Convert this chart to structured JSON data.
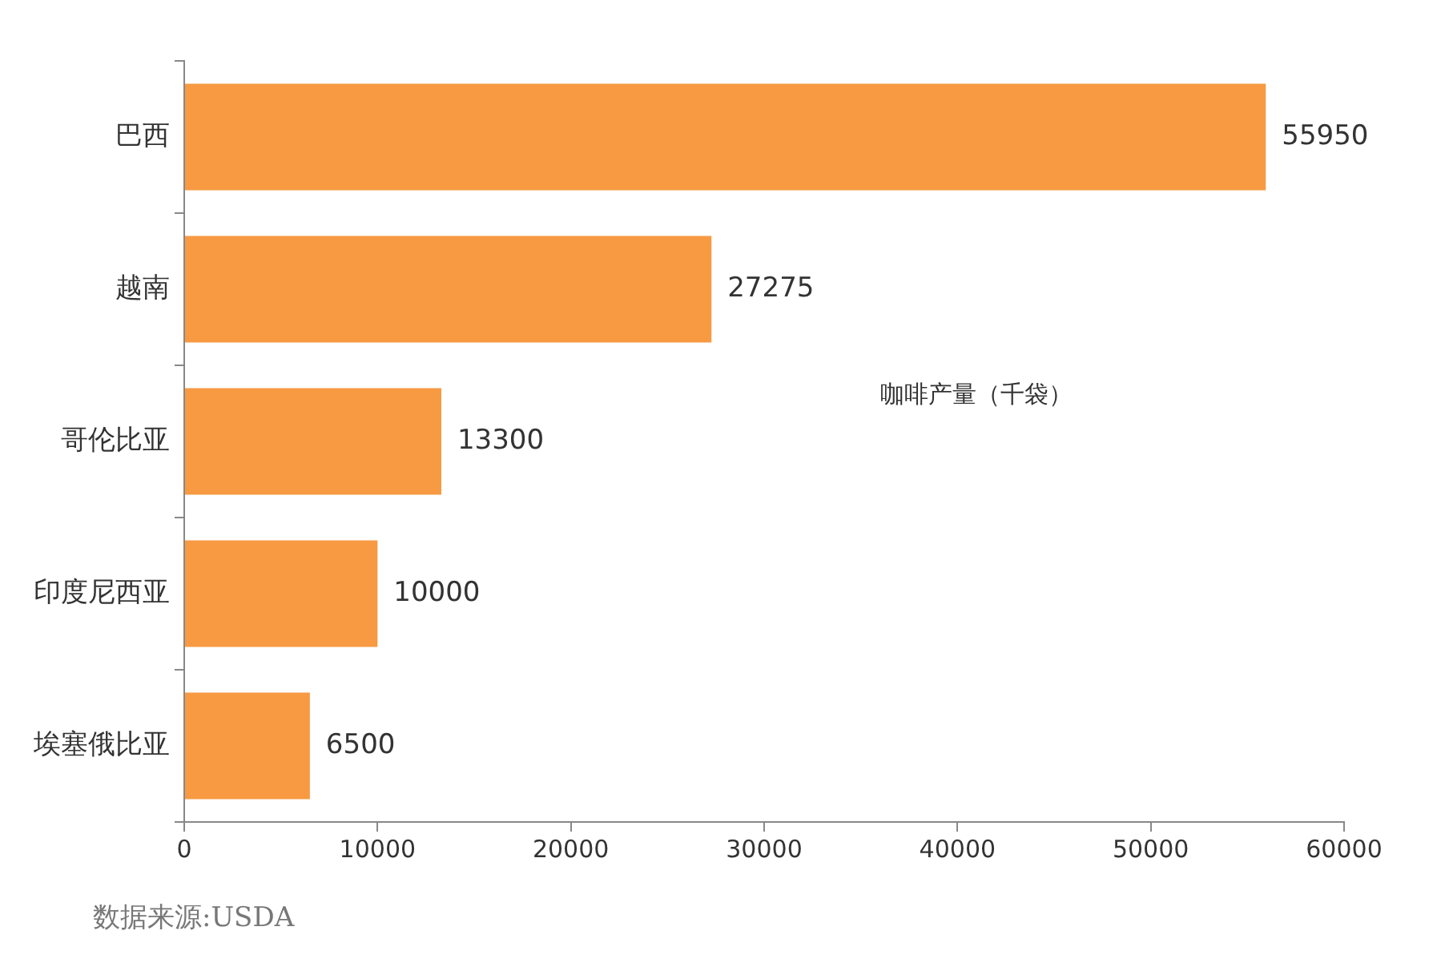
{
  "chart_data": {
    "type": "bar",
    "orientation": "horizontal",
    "categories": [
      "巴西",
      "越南",
      "哥伦比亚",
      "印度尼西亚",
      "埃塞俄比亚"
    ],
    "series": [
      {
        "color": "#f79a42",
        "values": [
          55950,
          27275,
          13300,
          10000,
          6500
        ]
      }
    ],
    "data_labels": true,
    "xlim": [
      0,
      60000
    ],
    "xticks": [
      0,
      10000,
      20000,
      30000,
      40000,
      50000,
      60000
    ],
    "grid": false,
    "legend": false,
    "annotations": [
      "咖啡产量（千袋）",
      "数据来源:USDA"
    ]
  }
}
